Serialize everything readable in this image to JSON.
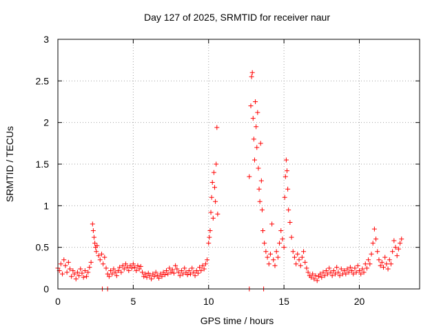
{
  "chart_data": {
    "type": "scatter",
    "title": "Day 127 of 2025, SRMTID for receiver naur",
    "xlabel": "GPS time / hours",
    "ylabel": "SRMTID / TECUs",
    "xlim": [
      0,
      24
    ],
    "ylim": [
      0,
      3
    ],
    "xticks": [
      0,
      5,
      10,
      15,
      20
    ],
    "yticks": [
      0,
      0.5,
      1,
      1.5,
      2,
      2.5,
      3
    ],
    "ytick_labels": [
      "0",
      "0.5",
      "1",
      "1.5",
      "2",
      "2.5",
      "3"
    ],
    "grid": true,
    "marker": "+",
    "color": "#ff0000",
    "series": [
      {
        "name": "SRMTID",
        "points": [
          [
            0.0,
            0.25
          ],
          [
            0.1,
            0.22
          ],
          [
            0.2,
            0.3
          ],
          [
            0.3,
            0.18
          ],
          [
            0.4,
            0.35
          ],
          [
            0.5,
            0.28
          ],
          [
            0.6,
            0.2
          ],
          [
            0.7,
            0.32
          ],
          [
            0.8,
            0.24
          ],
          [
            0.9,
            0.15
          ],
          [
            1.0,
            0.22
          ],
          [
            1.1,
            0.18
          ],
          [
            1.2,
            0.12
          ],
          [
            1.3,
            0.2
          ],
          [
            1.4,
            0.16
          ],
          [
            1.5,
            0.24
          ],
          [
            1.6,
            0.19
          ],
          [
            1.7,
            0.14
          ],
          [
            1.8,
            0.22
          ],
          [
            1.9,
            0.15
          ],
          [
            2.0,
            0.2
          ],
          [
            2.1,
            0.26
          ],
          [
            2.2,
            0.32
          ],
          [
            2.3,
            0.78
          ],
          [
            2.35,
            0.7
          ],
          [
            2.4,
            0.62
          ],
          [
            2.45,
            0.55
          ],
          [
            2.5,
            0.5
          ],
          [
            2.55,
            0.45
          ],
          [
            2.6,
            0.52
          ],
          [
            2.7,
            0.4
          ],
          [
            2.8,
            0.35
          ],
          [
            2.9,
            0.42
          ],
          [
            3.0,
            0.3
          ],
          [
            3.1,
            0.38
          ],
          [
            3.2,
            0.25
          ],
          [
            3.3,
            0.18
          ],
          [
            3.4,
            0.15
          ],
          [
            3.5,
            0.22
          ],
          [
            3.6,
            0.18
          ],
          [
            3.7,
            0.24
          ],
          [
            3.8,
            0.2
          ],
          [
            3.9,
            0.16
          ],
          [
            4.0,
            0.22
          ],
          [
            4.1,
            0.26
          ],
          [
            4.2,
            0.2
          ],
          [
            4.3,
            0.28
          ],
          [
            4.4,
            0.24
          ],
          [
            4.5,
            0.3
          ],
          [
            4.6,
            0.26
          ],
          [
            4.7,
            0.22
          ],
          [
            4.8,
            0.28
          ],
          [
            4.9,
            0.25
          ],
          [
            5.0,
            0.3
          ],
          [
            5.1,
            0.26
          ],
          [
            5.2,
            0.22
          ],
          [
            5.3,
            0.28
          ],
          [
            5.4,
            0.24
          ],
          [
            5.5,
            0.27
          ],
          [
            5.6,
            0.2
          ],
          [
            5.7,
            0.15
          ],
          [
            5.8,
            0.18
          ],
          [
            5.9,
            0.14
          ],
          [
            6.0,
            0.19
          ],
          [
            6.1,
            0.16
          ],
          [
            6.2,
            0.12
          ],
          [
            6.3,
            0.18
          ],
          [
            6.4,
            0.15
          ],
          [
            6.5,
            0.2
          ],
          [
            6.6,
            0.16
          ],
          [
            6.7,
            0.13
          ],
          [
            6.8,
            0.18
          ],
          [
            6.9,
            0.15
          ],
          [
            7.0,
            0.2
          ],
          [
            7.1,
            0.17
          ],
          [
            7.2,
            0.22
          ],
          [
            7.3,
            0.18
          ],
          [
            7.4,
            0.25
          ],
          [
            7.5,
            0.2
          ],
          [
            7.6,
            0.23
          ],
          [
            7.7,
            0.19
          ],
          [
            7.8,
            0.28
          ],
          [
            7.9,
            0.24
          ],
          [
            8.0,
            0.2
          ],
          [
            8.1,
            0.16
          ],
          [
            8.2,
            0.22
          ],
          [
            8.3,
            0.18
          ],
          [
            8.4,
            0.25
          ],
          [
            8.5,
            0.2
          ],
          [
            8.6,
            0.17
          ],
          [
            8.7,
            0.22
          ],
          [
            8.8,
            0.18
          ],
          [
            8.9,
            0.25
          ],
          [
            9.0,
            0.2
          ],
          [
            9.1,
            0.16
          ],
          [
            9.2,
            0.22
          ],
          [
            9.3,
            0.19
          ],
          [
            9.4,
            0.26
          ],
          [
            9.5,
            0.22
          ],
          [
            9.6,
            0.28
          ],
          [
            9.7,
            0.24
          ],
          [
            9.8,
            0.3
          ],
          [
            9.9,
            0.35
          ],
          [
            10.0,
            0.55
          ],
          [
            10.05,
            0.62
          ],
          [
            10.1,
            0.7
          ],
          [
            10.15,
            0.92
          ],
          [
            10.2,
            1.1
          ],
          [
            10.25,
            1.28
          ],
          [
            10.3,
            0.85
          ],
          [
            10.35,
            1.4
          ],
          [
            10.4,
            1.22
          ],
          [
            10.45,
            1.05
          ],
          [
            10.5,
            1.5
          ],
          [
            10.55,
            1.94
          ],
          [
            10.6,
            0.9
          ],
          [
            12.7,
            1.35
          ],
          [
            12.8,
            2.2
          ],
          [
            12.85,
            2.55
          ],
          [
            12.9,
            2.6
          ],
          [
            12.95,
            2.05
          ],
          [
            13.0,
            1.8
          ],
          [
            13.05,
            1.55
          ],
          [
            13.1,
            2.25
          ],
          [
            13.15,
            1.95
          ],
          [
            13.2,
            1.7
          ],
          [
            13.25,
            2.12
          ],
          [
            13.3,
            1.45
          ],
          [
            13.35,
            1.2
          ],
          [
            13.4,
            1.05
          ],
          [
            13.45,
            1.75
          ],
          [
            13.5,
            1.3
          ],
          [
            13.55,
            0.95
          ],
          [
            13.6,
            0.7
          ],
          [
            13.7,
            0.55
          ],
          [
            13.8,
            0.45
          ],
          [
            13.9,
            0.38
          ],
          [
            14.0,
            0.3
          ],
          [
            14.1,
            0.42
          ],
          [
            14.2,
            0.78
          ],
          [
            14.3,
            0.35
          ],
          [
            14.4,
            0.28
          ],
          [
            14.5,
            0.45
          ],
          [
            14.6,
            0.38
          ],
          [
            14.7,
            0.55
          ],
          [
            14.8,
            0.7
          ],
          [
            14.9,
            0.6
          ],
          [
            15.0,
            0.5
          ],
          [
            15.05,
            1.1
          ],
          [
            15.1,
            1.35
          ],
          [
            15.15,
            1.55
          ],
          [
            15.2,
            1.42
          ],
          [
            15.25,
            1.2
          ],
          [
            15.3,
            0.95
          ],
          [
            15.4,
            0.8
          ],
          [
            15.5,
            0.62
          ],
          [
            15.6,
            0.45
          ],
          [
            15.7,
            0.38
          ],
          [
            15.8,
            0.3
          ],
          [
            15.9,
            0.42
          ],
          [
            16.0,
            0.35
          ],
          [
            16.1,
            0.28
          ],
          [
            16.2,
            0.38
          ],
          [
            16.3,
            0.45
          ],
          [
            16.4,
            0.32
          ],
          [
            16.5,
            0.25
          ],
          [
            16.6,
            0.2
          ],
          [
            16.7,
            0.16
          ],
          [
            16.8,
            0.14
          ],
          [
            16.9,
            0.18
          ],
          [
            17.0,
            0.12
          ],
          [
            17.1,
            0.16
          ],
          [
            17.2,
            0.1
          ],
          [
            17.3,
            0.15
          ],
          [
            17.4,
            0.18
          ],
          [
            17.5,
            0.14
          ],
          [
            17.6,
            0.2
          ],
          [
            17.7,
            0.16
          ],
          [
            17.8,
            0.22
          ],
          [
            17.9,
            0.18
          ],
          [
            18.0,
            0.25
          ],
          [
            18.1,
            0.2
          ],
          [
            18.2,
            0.16
          ],
          [
            18.3,
            0.22
          ],
          [
            18.4,
            0.18
          ],
          [
            18.5,
            0.26
          ],
          [
            18.6,
            0.2
          ],
          [
            18.7,
            0.16
          ],
          [
            18.8,
            0.24
          ],
          [
            18.9,
            0.18
          ],
          [
            19.0,
            0.22
          ],
          [
            19.1,
            0.18
          ],
          [
            19.2,
            0.24
          ],
          [
            19.3,
            0.2
          ],
          [
            19.4,
            0.26
          ],
          [
            19.5,
            0.22
          ],
          [
            19.6,
            0.18
          ],
          [
            19.7,
            0.25
          ],
          [
            19.8,
            0.2
          ],
          [
            19.9,
            0.28
          ],
          [
            20.0,
            0.22
          ],
          [
            20.1,
            0.18
          ],
          [
            20.2,
            0.24
          ],
          [
            20.3,
            0.2
          ],
          [
            20.4,
            0.3
          ],
          [
            20.5,
            0.25
          ],
          [
            20.6,
            0.35
          ],
          [
            20.7,
            0.3
          ],
          [
            20.8,
            0.42
          ],
          [
            20.9,
            0.55
          ],
          [
            21.0,
            0.72
          ],
          [
            21.1,
            0.6
          ],
          [
            21.2,
            0.45
          ],
          [
            21.3,
            0.35
          ],
          [
            21.4,
            0.28
          ],
          [
            21.5,
            0.32
          ],
          [
            21.6,
            0.26
          ],
          [
            21.7,
            0.38
          ],
          [
            21.8,
            0.3
          ],
          [
            21.9,
            0.24
          ],
          [
            22.0,
            0.35
          ],
          [
            22.1,
            0.3
          ],
          [
            22.2,
            0.45
          ],
          [
            22.3,
            0.58
          ],
          [
            22.4,
            0.5
          ],
          [
            22.5,
            0.4
          ],
          [
            22.6,
            0.48
          ],
          [
            22.7,
            0.55
          ],
          [
            22.8,
            0.6
          ],
          [
            2.95,
            0.0
          ],
          [
            3.3,
            0.0
          ],
          [
            12.7,
            0.0
          ],
          [
            13.65,
            0.0
          ]
        ]
      }
    ]
  }
}
